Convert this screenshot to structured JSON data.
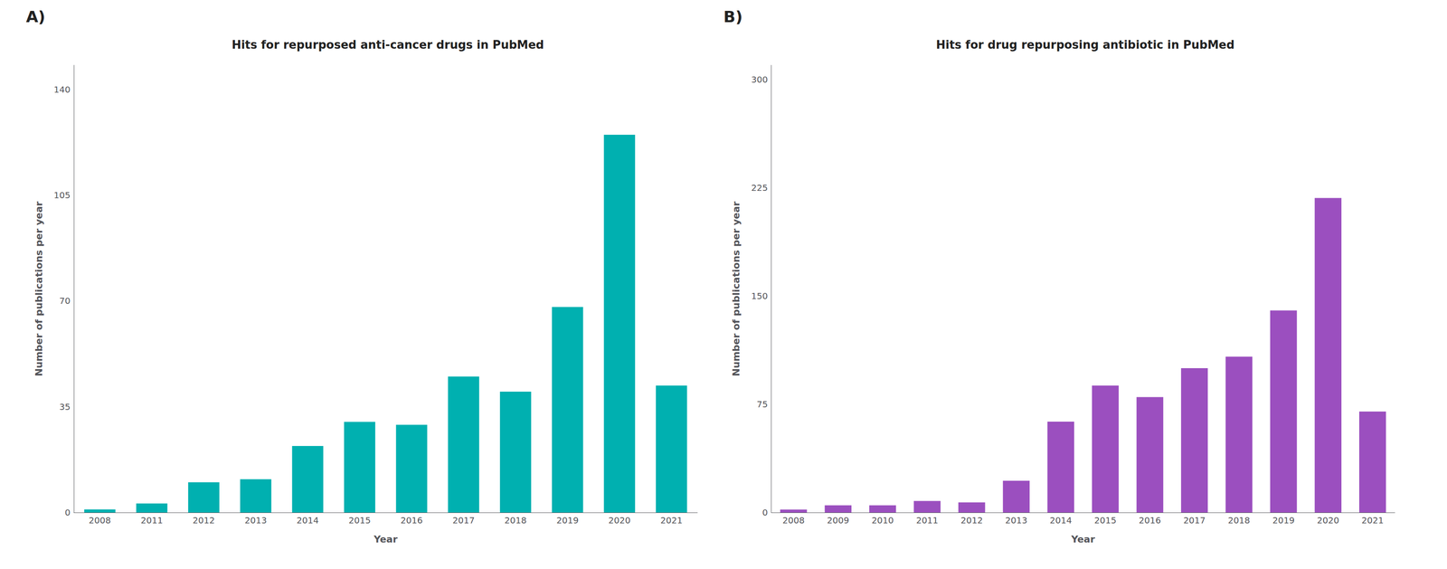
{
  "chart_data": [
    {
      "type": "bar",
      "title": "Hits for repurposed anti-cancer drugs in PubMed",
      "xlabel": "Year",
      "ylabel": "Number of publications per year",
      "categories": [
        "2008",
        "2011",
        "2012",
        "2013",
        "2014",
        "2015",
        "2016",
        "2017",
        "2018",
        "2019",
        "2020",
        "2021"
      ],
      "values": [
        1,
        3,
        10,
        11,
        22,
        30,
        29,
        45,
        40,
        68,
        125,
        42
      ],
      "color": "#00B0B0",
      "ylim": [
        0,
        148
      ],
      "yticks": [
        0,
        35,
        70,
        105,
        140
      ],
      "grid": false,
      "annotation": "A)"
    },
    {
      "type": "bar",
      "title": "Hits for drug repurposing antibiotic in PubMed",
      "xlabel": "Year",
      "ylabel": "Number of publications per year",
      "categories": [
        "2008",
        "2009",
        "2010",
        "2011",
        "2012",
        "2013",
        "2014",
        "2015",
        "2016",
        "2017",
        "2018",
        "2019",
        "2020",
        "2021"
      ],
      "values": [
        2,
        5,
        5,
        8,
        7,
        22,
        63,
        88,
        80,
        100,
        108,
        140,
        218,
        70
      ],
      "color": "#9B4FBF",
      "ylim": [
        0,
        310
      ],
      "yticks": [
        0,
        75,
        150,
        225,
        300
      ],
      "grid": false,
      "annotation": "B)"
    }
  ]
}
